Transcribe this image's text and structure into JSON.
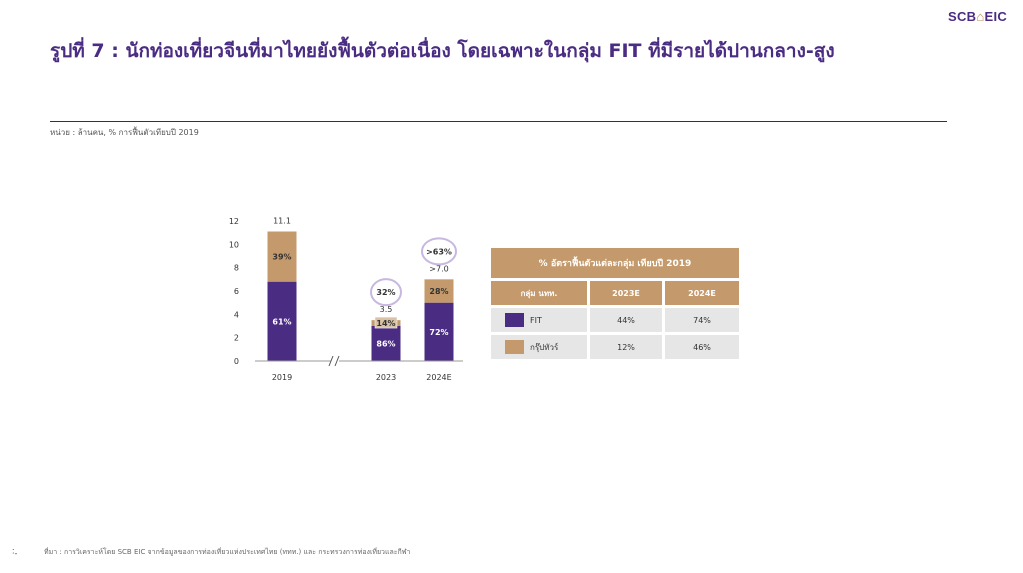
{
  "header": {
    "logo_text": "SCB",
    "logo_mark": "⌂",
    "logo_suffix": "EIC",
    "title": "รูปที่ 7 : นักท่องเที่ยวจีนที่มาไทยยังฟื้นตัวต่อเนื่อง โดยเฉพาะในกลุ่ม FIT ที่มีรายได้ปานกลาง-สูง",
    "unit_note": "หน่วย : ล้านคน, % การฟื้นตัวเทียบปี 2019"
  },
  "footer": {
    "source": "ที่มา : การวิเคราะห์โดย SCB EIC จากข้อมูลของการท่องเที่ยวแห่งประเทศไทย (ททท.) และ กระทรวงการท่องเที่ยวและกีฬา"
  },
  "colors": {
    "fit": "#4b2c83",
    "group_tour": "#c49a6c",
    "title": "#4b2c83",
    "circle": "#c8b8e0"
  },
  "chart_data": {
    "type": "bar",
    "stacked": true,
    "categories": [
      "2019",
      "2023",
      "2024E"
    ],
    "series": [
      {
        "name": "FIT",
        "values": [
          6.8,
          3.0,
          5.0
        ],
        "share_labels": [
          "61%",
          "86%",
          "72%"
        ]
      },
      {
        "name": "กรุ๊ปทัวร์",
        "values": [
          4.3,
          0.5,
          2.0
        ],
        "share_labels": [
          "39%",
          "14%",
          "28%"
        ]
      }
    ],
    "totals": [
      "11.1",
      "3.5",
      ">7.0"
    ],
    "recovery_labels": [
      "",
      "32%",
      ">63%"
    ],
    "ylim": [
      0,
      12
    ],
    "yticks": [
      "0",
      "2",
      "4",
      "6",
      "8",
      "10",
      "12"
    ],
    "axis_break_between": [
      "2019",
      "2023"
    ]
  },
  "table": {
    "title": "% อัตราฟื้นตัวแต่ละกลุ่ม เทียบปี 2019",
    "headers": [
      "กลุ่ม นทท.",
      "2023E",
      "2024E"
    ],
    "rows": [
      {
        "group": "FIT",
        "y2023": "44%",
        "y2024": "74%",
        "color": "#4b2c83"
      },
      {
        "group": "กรุ๊ปทัวร์",
        "y2023": "12%",
        "y2024": "46%",
        "color": "#c49a6c"
      }
    ]
  }
}
